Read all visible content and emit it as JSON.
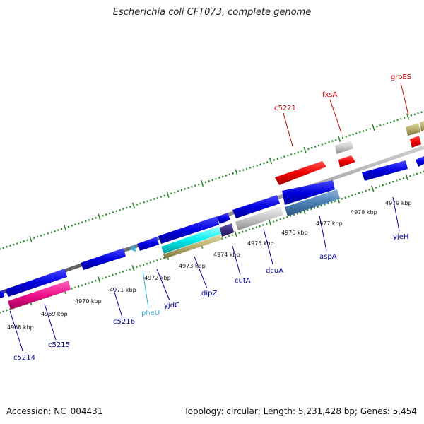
{
  "title": "Escherichia coli CFT073, complete genome",
  "footer": {
    "accession": "Accession: NC_004431",
    "topology": "Topology: circular; Length: 5,231,428 bp; Genes: 5,454"
  },
  "colors": {
    "backbone": "#888888",
    "tick_green": "#2e8b2e",
    "forward_label": "#cc0000",
    "reverse_label": "#000099",
    "trna_label": "#33aadd"
  },
  "scale_labels": [
    "4968 kbp",
    "4969 kbp",
    "4970 kbp",
    "4971 kbp",
    "4972 kbp",
    "4973 kbp",
    "4974 kbp",
    "4975 kbp",
    "4976 kbp",
    "4977 kbp",
    "4978 kbp",
    "4979 kbp"
  ],
  "gene_labels": [
    {
      "name": "groES",
      "color": "#cc0000"
    },
    {
      "name": "fxsA",
      "color": "#cc0000"
    },
    {
      "name": "c5221",
      "color": "#cc0000"
    },
    {
      "name": "c5214",
      "color": "#000099"
    },
    {
      "name": "c5215",
      "color": "#000099"
    },
    {
      "name": "c5216",
      "color": "#000099"
    },
    {
      "name": "pheU",
      "color": "#33aadd"
    },
    {
      "name": "yjdC",
      "color": "#000099"
    },
    {
      "name": "dipZ",
      "color": "#000099"
    },
    {
      "name": "cutA",
      "color": "#000099"
    },
    {
      "name": "dcuA",
      "color": "#000099"
    },
    {
      "name": "aspA",
      "color": "#000099"
    },
    {
      "name": "yjeH",
      "color": "#000099"
    }
  ]
}
